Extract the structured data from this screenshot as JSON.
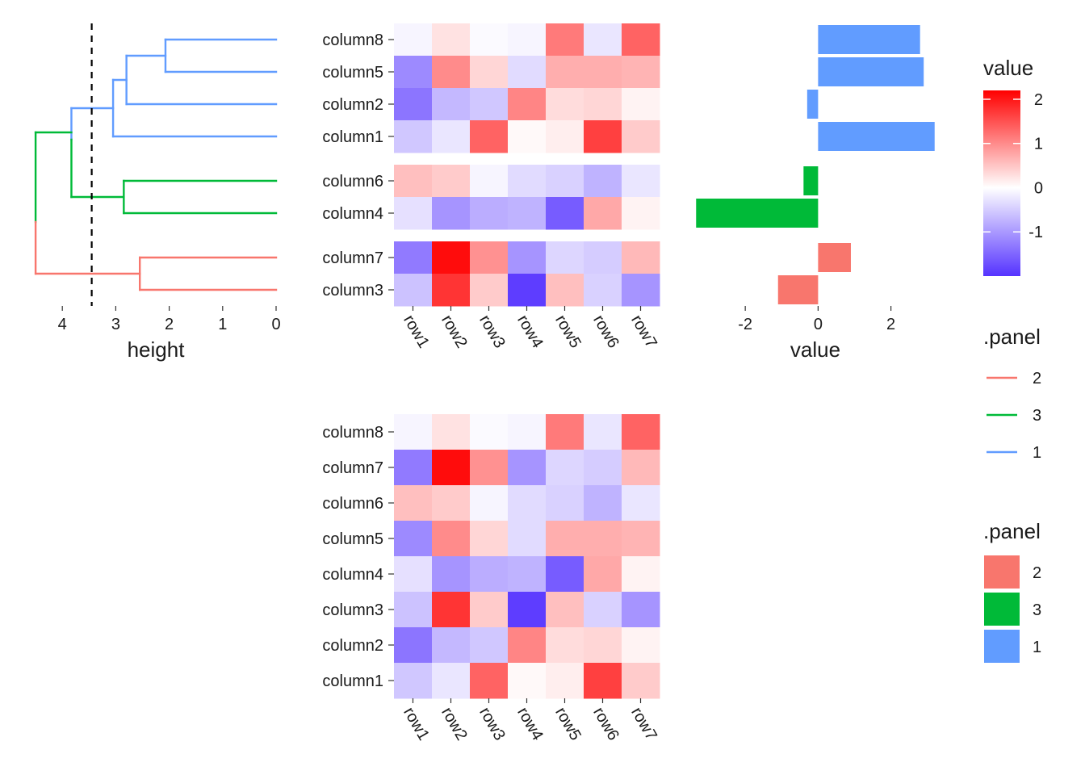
{
  "chart_data": [
    {
      "type": "dendrogram",
      "xlabel": "height",
      "x_ticks": [
        4,
        3,
        2,
        1,
        0
      ],
      "cut_height": 3.45,
      "leaves": [
        "column8",
        "column5",
        "column2",
        "column1",
        "column6",
        "column4",
        "column7",
        "column3"
      ],
      "merges": [
        {
          "a": "column8",
          "b": "column5",
          "height": 2.07,
          "panel": "1"
        },
        {
          "a": "(column8,column5)",
          "b": "column2",
          "height": 2.8,
          "panel": "1"
        },
        {
          "a": "(column8,column5,column2)",
          "b": "column1",
          "height": 3.05,
          "panel": "1"
        },
        {
          "a": "column6",
          "b": "column4",
          "height": 2.85,
          "panel": "3"
        },
        {
          "a": "cluster1",
          "b": "cluster3",
          "height": 3.83,
          "panel": "mixed"
        },
        {
          "a": "column7",
          "b": "column3",
          "height": 2.55,
          "panel": "2"
        },
        {
          "a": "(cluster1,cluster3)",
          "b": "cluster2",
          "height": 4.5,
          "panel": "root"
        }
      ]
    },
    {
      "type": "heatmap",
      "columns": [
        "row1",
        "row2",
        "row3",
        "row4",
        "row5",
        "row6",
        "row7"
      ],
      "row_groups": [
        {
          "panel": "1",
          "rows": [
            "column8",
            "column5",
            "column2",
            "column1"
          ]
        },
        {
          "panel": "3",
          "rows": [
            "column6",
            "column4"
          ]
        },
        {
          "panel": "2",
          "rows": [
            "column7",
            "column3"
          ]
        }
      ],
      "values": {
        "column1": [
          -0.55,
          -0.25,
          1.35,
          0.05,
          0.15,
          1.65,
          0.45
        ],
        "column2": [
          -1.35,
          -0.7,
          -0.55,
          1.05,
          0.3,
          0.35,
          0.1
        ],
        "column3": [
          -0.6,
          1.75,
          0.45,
          -1.9,
          0.55,
          -0.45,
          -1.05
        ],
        "column4": [
          -0.3,
          -1.05,
          -0.8,
          -0.75,
          -1.6,
          0.75,
          0.1
        ],
        "column5": [
          -1.15,
          1.0,
          0.35,
          -0.35,
          0.7,
          0.7,
          0.65
        ],
        "column6": [
          0.55,
          0.45,
          -0.1,
          -0.35,
          -0.45,
          -0.75,
          -0.25
        ],
        "column7": [
          -1.3,
          2.1,
          0.95,
          -1.05,
          -0.4,
          -0.5,
          0.6
        ],
        "column8": [
          -0.1,
          0.25,
          -0.05,
          -0.1,
          1.15,
          -0.25,
          1.35
        ]
      }
    },
    {
      "type": "bar",
      "orientation": "horizontal",
      "xlabel": "value",
      "x_ticks": [
        -2,
        0,
        2
      ],
      "xlim": [
        -3.4,
        3.25
      ],
      "bars": [
        {
          "category": "column8",
          "value": 2.8,
          "panel": "1"
        },
        {
          "category": "column5",
          "value": 2.9,
          "panel": "1"
        },
        {
          "category": "column2",
          "value": -0.3,
          "panel": "1"
        },
        {
          "category": "column1",
          "value": 3.2,
          "panel": "1"
        },
        {
          "category": "column6",
          "value": -0.4,
          "panel": "3"
        },
        {
          "category": "column4",
          "value": -3.35,
          "panel": "3"
        },
        {
          "category": "column7",
          "value": 0.9,
          "panel": "2"
        },
        {
          "category": "column3",
          "value": -1.1,
          "panel": "2"
        }
      ]
    },
    {
      "type": "heatmap",
      "columns": [
        "row1",
        "row2",
        "row3",
        "row4",
        "row5",
        "row6",
        "row7"
      ],
      "rows": [
        "column8",
        "column7",
        "column6",
        "column5",
        "column4",
        "column3",
        "column2",
        "column1"
      ]
    }
  ],
  "legends": {
    "value": {
      "title": "value",
      "ticks": [
        "2",
        "1",
        "0",
        "-1"
      ],
      "tick_values": [
        2,
        1,
        0,
        -1
      ],
      "range": [
        -2.0,
        2.2
      ],
      "colors": {
        "low": "#5533ff",
        "mid": "#ffffff",
        "high": "#ff0000"
      }
    },
    "panel_lines": {
      "title": ".panel",
      "items": [
        {
          "label": "2",
          "color": "#f8766d"
        },
        {
          "label": "3",
          "color": "#00ba38"
        },
        {
          "label": "1",
          "color": "#619cff"
        }
      ]
    },
    "panel_fill": {
      "title": ".panel",
      "items": [
        {
          "label": "2",
          "color": "#f8766d"
        },
        {
          "label": "3",
          "color": "#00ba38"
        },
        {
          "label": "1",
          "color": "#619cff"
        }
      ]
    }
  },
  "panel_colors": {
    "1": "#619cff",
    "2": "#f8766d",
    "3": "#00ba38"
  }
}
